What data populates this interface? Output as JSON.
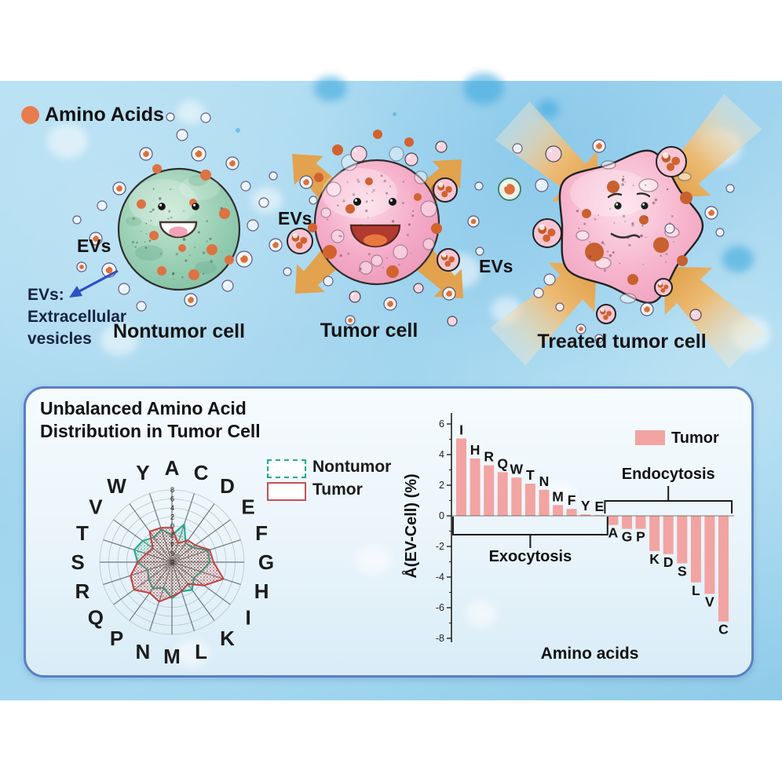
{
  "header_legend": {
    "label": "Amino Acids",
    "dot_color": "#E87C4F"
  },
  "illustration": {
    "ev_labels": [
      "EVs",
      "EVs",
      "EVs"
    ],
    "ev_note_lines": [
      "EVs:",
      "Extracellular",
      "vesicles"
    ],
    "captions": {
      "nontumor": "Nontumor cell",
      "tumor": "Tumor cell",
      "treated": "Treated tumor cell"
    }
  },
  "panel": {
    "title_line1": "Unbalanced Amino Acid",
    "title_line2": "Distribution in Tumor Cell"
  },
  "chart_data": [
    {
      "type": "radar",
      "categories": [
        "A",
        "C",
        "D",
        "E",
        "F",
        "G",
        "H",
        "I",
        "K",
        "L",
        "M",
        "N",
        "P",
        "Q",
        "R",
        "S",
        "T",
        "V",
        "W",
        "Y"
      ],
      "radial_tick_labels": [
        "8",
        "6",
        "4",
        "2",
        "0",
        "2",
        "4",
        "6",
        "8"
      ],
      "rings": 8,
      "rmax": 8,
      "legend_position": "right",
      "series": [
        {
          "name": "Nontumor",
          "color": "#1fa98c",
          "values": [
            3.0,
            4.4,
            2.6,
            2.8,
            4.2,
            4.2,
            3.4,
            3.0,
            3.8,
            3.4,
            4.0,
            3.0,
            3.6,
            3.2,
            2.8,
            3.8,
            4.4,
            4.0,
            3.4,
            3.8
          ]
        },
        {
          "name": "Tumor",
          "color": "#c2403e",
          "values": [
            3.8,
            2.2,
            3.0,
            3.2,
            4.4,
            4.6,
            6.0,
            4.4,
            3.0,
            3.4,
            3.8,
            4.6,
            4.2,
            5.2,
            4.8,
            3.8,
            3.0,
            2.6,
            4.2,
            4.0
          ]
        }
      ]
    },
    {
      "type": "bar",
      "categories": [
        "I",
        "H",
        "R",
        "Q",
        "W",
        "T",
        "N",
        "M",
        "F",
        "Y",
        "E",
        "A",
        "G",
        "P",
        "K",
        "D",
        "S",
        "L",
        "V",
        "C"
      ],
      "values": [
        5.05,
        3.75,
        3.3,
        2.85,
        2.5,
        2.1,
        1.7,
        0.7,
        0.45,
        0.1,
        0.05,
        -0.6,
        -0.85,
        -0.85,
        -2.3,
        -2.5,
        -3.1,
        -4.35,
        -5.1,
        -6.9
      ],
      "series_name": "Tumor",
      "bar_color": "#F2A4A2",
      "ylabel": "Å(EV-Cell) (%)",
      "xlabel": "Amino acids",
      "ylim": [
        -8,
        7
      ],
      "yticks": [
        6,
        4,
        2,
        0,
        -2,
        -4,
        -6,
        -8
      ],
      "annotations": [
        {
          "label": "Exocytosis",
          "from": "I",
          "to": "E",
          "side": "below"
        },
        {
          "label": "Endocytosis",
          "from": "A",
          "to": "C",
          "side": "above"
        }
      ]
    }
  ]
}
